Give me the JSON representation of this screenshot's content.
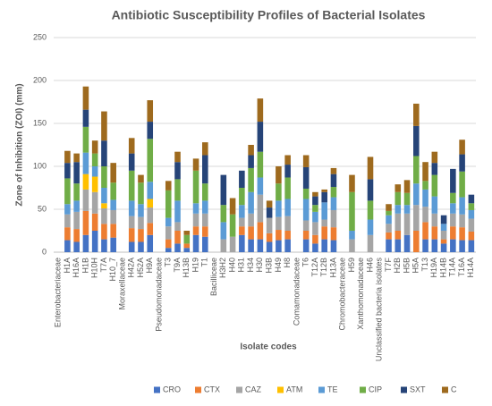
{
  "chart_data": {
    "type": "stacked_bar",
    "title": "Antibiotic Susceptibility Profiles of Bacterial Isolates",
    "x_label": "Isolate codes",
    "y_label": "Zone of Inhibition (ZOI) (mm)",
    "ylim": [
      0,
      250
    ],
    "yticks": [
      0,
      50,
      100,
      150,
      200,
      250
    ],
    "grid": true,
    "legend": "bottom",
    "categories": [
      "Enterobacteriaceae",
      "H1A",
      "H16A",
      "H1B",
      "H10H",
      "T7A",
      "H10_7",
      "Moraxellaceae",
      "H42A",
      "H52A",
      "H9A",
      "Pseudomonadaceae",
      "T3",
      "T9A",
      "H13B",
      "H19",
      "T1",
      "Bacilliceae",
      "H3H2",
      "H40",
      "H31",
      "H34",
      "H30",
      "H3B",
      "H49",
      "H8",
      "Comamonadaceae",
      "T6",
      "T12A",
      "T12B",
      "H13A",
      "Chromobacteraceae",
      "H59",
      "Xanthomonadaceae",
      "H46",
      "Unclassified bacteria isolates",
      "T7F",
      "H2B",
      "H5B",
      "H5A",
      "T13",
      "H19A",
      "H14B",
      "T14A",
      "T16A",
      "H14A"
    ],
    "series": [
      {
        "name": "CRO",
        "color": "#4472c4",
        "values": [
          null,
          14,
          12,
          20,
          25,
          15,
          17,
          null,
          12,
          12,
          20,
          null,
          5,
          10,
          5,
          20,
          18,
          null,
          0,
          0,
          20,
          15,
          15,
          12,
          14,
          15,
          null,
          15,
          10,
          15,
          14,
          null,
          0,
          null,
          0,
          null,
          15,
          15,
          20,
          0,
          15,
          15,
          10,
          15,
          14,
          14
        ]
      },
      {
        "name": "CTX",
        "color": "#ed7d31",
        "values": [
          null,
          15,
          15,
          28,
          20,
          18,
          16,
          null,
          16,
          15,
          14,
          null,
          10,
          15,
          5,
          10,
          12,
          null,
          0,
          0,
          10,
          15,
          20,
          10,
          12,
          10,
          null,
          10,
          10,
          15,
          15,
          null,
          0,
          null,
          0,
          null,
          8,
          10,
          0,
          25,
          20,
          15,
          5,
          15,
          15,
          10
        ]
      },
      {
        "name": "CAZ",
        "color": "#a5a5a5",
        "values": [
          null,
          15,
          20,
          25,
          25,
          18,
          16,
          null,
          14,
          14,
          18,
          null,
          15,
          10,
          0,
          15,
          15,
          null,
          15,
          18,
          10,
          15,
          32,
          18,
          15,
          17,
          null,
          12,
          15,
          8,
          20,
          null,
          15,
          null,
          20,
          null,
          10,
          20,
          25,
          30,
          18,
          15,
          10,
          15,
          15,
          15
        ]
      },
      {
        "name": "ATM",
        "color": "#ffc000",
        "values": [
          null,
          0,
          0,
          18,
          18,
          6,
          0,
          null,
          0,
          0,
          10,
          null,
          0,
          0,
          0,
          0,
          0,
          null,
          0,
          0,
          0,
          0,
          0,
          0,
          0,
          0,
          null,
          0,
          0,
          0,
          0,
          null,
          0,
          null,
          0,
          null,
          0,
          0,
          0,
          0,
          0,
          0,
          0,
          0,
          0,
          0
        ]
      },
      {
        "name": "TE",
        "color": "#5b9bd5",
        "values": [
          null,
          12,
          13,
          25,
          12,
          18,
          12,
          null,
          18,
          15,
          20,
          null,
          10,
          25,
          0,
          12,
          15,
          null,
          20,
          0,
          15,
          25,
          20,
          0,
          19,
          20,
          null,
          25,
          12,
          20,
          15,
          null,
          10,
          null,
          18,
          null,
          10,
          10,
          10,
          25,
          20,
          20,
          8,
          12,
          20,
          10
        ]
      },
      {
        "name": "CIP",
        "color": "#70ad47",
        "values": [
          null,
          30,
          20,
          30,
          15,
          25,
          20,
          null,
          35,
          25,
          50,
          null,
          32,
          25,
          10,
          38,
          20,
          null,
          20,
          26,
          20,
          28,
          30,
          0,
          20,
          25,
          null,
          12,
          8,
          0,
          12,
          null,
          45,
          null,
          22,
          null,
          5,
          15,
          14,
          32,
          10,
          25,
          0,
          12,
          30,
          8
        ]
      },
      {
        "name": "SXT",
        "color": "#264478",
        "values": [
          null,
          18,
          25,
          20,
          0,
          30,
          0,
          null,
          20,
          0,
          20,
          null,
          0,
          20,
          0,
          0,
          33,
          null,
          35,
          0,
          20,
          15,
          35,
          12,
          0,
          15,
          null,
          25,
          10,
          12,
          15,
          null,
          0,
          null,
          25,
          null,
          0,
          0,
          0,
          35,
          0,
          14,
          10,
          28,
          20,
          10
        ]
      },
      {
        "name": "C",
        "color": "#9e6a1e",
        "values": [
          null,
          14,
          10,
          27,
          15,
          34,
          23,
          null,
          18,
          9,
          25,
          null,
          11,
          12,
          5,
          14,
          15,
          null,
          0,
          19,
          0,
          12,
          27,
          8,
          20,
          11,
          null,
          14,
          5,
          3,
          7,
          null,
          20,
          null,
          26,
          null,
          8,
          9,
          15,
          26,
          22,
          13,
          0,
          0,
          17,
          0
        ]
      }
    ]
  }
}
